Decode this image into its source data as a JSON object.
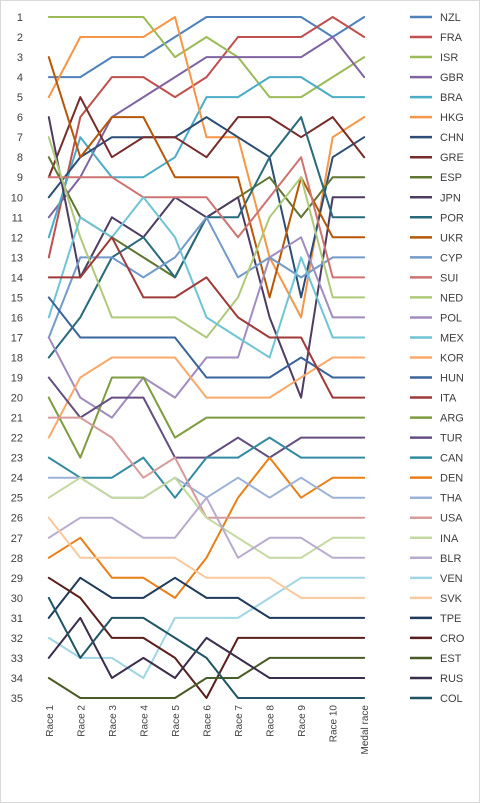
{
  "chart_data": {
    "type": "line",
    "title": "",
    "xlabel": "",
    "ylabel": "",
    "categories": [
      "Race 1",
      "Race 2",
      "Race 3",
      "Race 4",
      "Race 5",
      "Race 6",
      "Race 7",
      "Race 8",
      "Race 9",
      "Race 10",
      "Medal race"
    ],
    "y_ticks": [
      1,
      2,
      3,
      4,
      5,
      6,
      7,
      8,
      9,
      10,
      11,
      12,
      13,
      14,
      15,
      16,
      17,
      18,
      19,
      20,
      21,
      22,
      23,
      24,
      25,
      26,
      27,
      28,
      29,
      30,
      31,
      32,
      33,
      34,
      35
    ],
    "ylim": [
      1,
      35
    ],
    "y_inverted": true,
    "grid": false,
    "legend_position": "right",
    "series": [
      {
        "name": "NZL",
        "color": "#4f81bd",
        "values": [
          4,
          4,
          3,
          3,
          2,
          1,
          1,
          1,
          1,
          2,
          1
        ]
      },
      {
        "name": "FRA",
        "color": "#c0504d",
        "values": [
          13,
          6,
          4,
          4,
          5,
          4,
          2,
          2,
          2,
          1,
          2
        ]
      },
      {
        "name": "ISR",
        "color": "#9bbb59",
        "values": [
          1,
          1,
          1,
          1,
          3,
          2,
          3,
          5,
          5,
          4,
          3
        ]
      },
      {
        "name": "GBR",
        "color": "#8064a2",
        "values": [
          11,
          9,
          6,
          5,
          4,
          3,
          3,
          3,
          3,
          2,
          4
        ]
      },
      {
        "name": "BRA",
        "color": "#4bacc6",
        "values": [
          12,
          7,
          9,
          9,
          8,
          5,
          5,
          4,
          4,
          5,
          5
        ]
      },
      {
        "name": "HKG",
        "color": "#f79646",
        "values": [
          5,
          2,
          2,
          2,
          1,
          7,
          7,
          13,
          16,
          7,
          6
        ]
      },
      {
        "name": "CHN",
        "color": "#2c4d75",
        "values": [
          10,
          8,
          7,
          7,
          7,
          6,
          7,
          8,
          15,
          8,
          7
        ]
      },
      {
        "name": "GRE",
        "color": "#772c2a",
        "values": [
          9,
          5,
          8,
          7,
          7,
          8,
          6,
          6,
          7,
          6,
          8
        ]
      },
      {
        "name": "ESP",
        "color": "#5f7530",
        "values": [
          8,
          11,
          12,
          13,
          14,
          11,
          10,
          9,
          11,
          9,
          9
        ]
      },
      {
        "name": "JPN",
        "color": "#4d3b62",
        "values": [
          6,
          14,
          11,
          12,
          10,
          11,
          10,
          16,
          20,
          10,
          10
        ]
      },
      {
        "name": "POR",
        "color": "#276a7c",
        "values": [
          18,
          16,
          13,
          12,
          14,
          11,
          11,
          8,
          6,
          11,
          11
        ]
      },
      {
        "name": "UKR",
        "color": "#b65708",
        "values": [
          3,
          8,
          6,
          6,
          9,
          9,
          9,
          15,
          9,
          12,
          12
        ]
      },
      {
        "name": "CYP",
        "color": "#729aca",
        "values": [
          17,
          13,
          13,
          14,
          13,
          11,
          14,
          13,
          14,
          13,
          13
        ]
      },
      {
        "name": "SUI",
        "color": "#cd7371",
        "values": [
          9,
          9,
          9,
          10,
          10,
          10,
          12,
          10,
          8,
          14,
          14
        ]
      },
      {
        "name": "NED",
        "color": "#afc97a",
        "values": [
          7,
          12,
          16,
          16,
          16,
          17,
          15,
          11,
          9,
          15,
          15
        ]
      },
      {
        "name": "POL",
        "color": "#a08cbf",
        "values": [
          17,
          20,
          21,
          19,
          20,
          18,
          18,
          13,
          12,
          16,
          16
        ]
      },
      {
        "name": "MEX",
        "color": "#6fc4d6",
        "values": [
          16,
          11,
          12,
          10,
          12,
          16,
          17,
          18,
          13,
          17,
          17
        ]
      },
      {
        "name": "KOR",
        "color": "#f9a96a",
        "values": [
          22,
          19,
          18,
          18,
          18,
          20,
          20,
          20,
          19,
          18,
          18
        ]
      },
      {
        "name": "HUN",
        "color": "#3a659a",
        "values": [
          15,
          17,
          17,
          17,
          17,
          19,
          19,
          19,
          18,
          19,
          19
        ]
      },
      {
        "name": "ITA",
        "color": "#9e3a38",
        "values": [
          14,
          14,
          12,
          15,
          15,
          14,
          16,
          17,
          17,
          20,
          20
        ]
      },
      {
        "name": "ARG",
        "color": "#7e9c40",
        "values": [
          20,
          23,
          19,
          19,
          22,
          21,
          21,
          21,
          21,
          21,
          21
        ]
      },
      {
        "name": "TUR",
        "color": "#654f82",
        "values": [
          19,
          21,
          20,
          20,
          23,
          23,
          22,
          23,
          22,
          22,
          22
        ]
      },
      {
        "name": "CAN",
        "color": "#338ba3",
        "values": [
          23,
          24,
          24,
          23,
          25,
          23,
          23,
          22,
          23,
          23,
          23
        ]
      },
      {
        "name": "DEN",
        "color": "#e97f17",
        "values": [
          28,
          27,
          29,
          29,
          30,
          28,
          25,
          23,
          25,
          24,
          24
        ]
      },
      {
        "name": "THA",
        "color": "#9cb1d7",
        "values": [
          24,
          24,
          25,
          25,
          24,
          25,
          24,
          25,
          24,
          25,
          25
        ]
      },
      {
        "name": "USA",
        "color": "#d79b9a",
        "values": [
          21,
          21,
          22,
          24,
          23,
          26,
          26,
          26,
          26,
          26,
          26
        ]
      },
      {
        "name": "INA",
        "color": "#c4d8a0",
        "values": [
          25,
          24,
          25,
          25,
          24,
          26,
          27,
          28,
          28,
          27,
          27
        ]
      },
      {
        "name": "BLR",
        "color": "#b8abcd",
        "values": [
          27,
          26,
          26,
          27,
          27,
          25,
          28,
          27,
          27,
          28,
          28
        ]
      },
      {
        "name": "VEN",
        "color": "#9fd6e3",
        "values": [
          32,
          33,
          33,
          34,
          31,
          31,
          31,
          30,
          29,
          29,
          29
        ]
      },
      {
        "name": "SVK",
        "color": "#fbc89b",
        "values": [
          26,
          28,
          28,
          28,
          28,
          29,
          29,
          29,
          30,
          30,
          30
        ]
      },
      {
        "name": "TPE",
        "color": "#1f3a5c",
        "values": [
          31,
          29,
          30,
          30,
          29,
          30,
          30,
          31,
          31,
          31,
          31
        ]
      },
      {
        "name": "CRO",
        "color": "#5a1f1d",
        "values": [
          29,
          30,
          32,
          32,
          33,
          35,
          32,
          32,
          32,
          32,
          32
        ]
      },
      {
        "name": "EST",
        "color": "#4a5c25",
        "values": [
          34,
          35,
          35,
          35,
          35,
          34,
          34,
          33,
          33,
          33,
          33
        ]
      },
      {
        "name": "RUS",
        "color": "#3b2d4c",
        "values": [
          33,
          31,
          34,
          33,
          34,
          32,
          33,
          34,
          34,
          34,
          34
        ]
      },
      {
        "name": "COL",
        "color": "#1f5665",
        "values": [
          30,
          33,
          31,
          31,
          32,
          33,
          35,
          35,
          35,
          35,
          35
        ]
      }
    ]
  }
}
